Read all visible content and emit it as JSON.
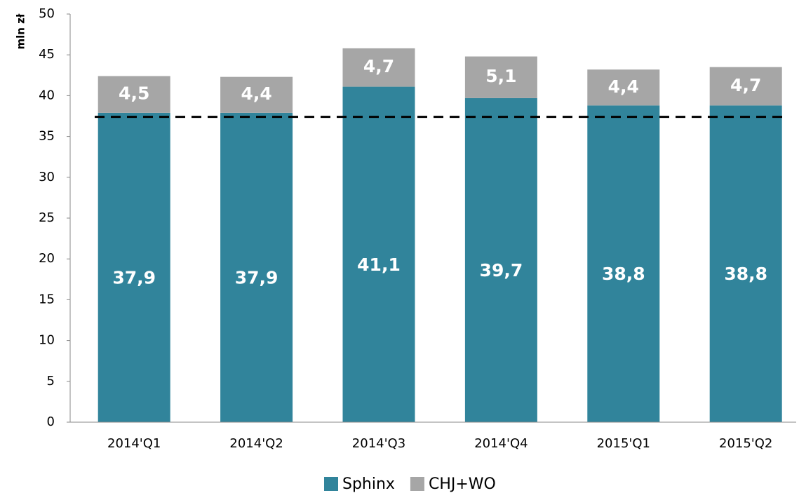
{
  "chart_data": {
    "type": "stacked_bar",
    "y_label": "mln zł",
    "categories": [
      "2014'Q1",
      "2014'Q2",
      "2014'Q3",
      "2014'Q4",
      "2015'Q1",
      "2015'Q2"
    ],
    "series": [
      {
        "name": "Sphinx",
        "color": "#31849b",
        "values": [
          37.9,
          37.9,
          41.1,
          39.7,
          38.8,
          38.8
        ],
        "value_labels": [
          "37,9",
          "37,9",
          "41,1",
          "39,7",
          "38,8",
          "38,8"
        ]
      },
      {
        "name": "CHJ+WO",
        "color": "#a6a6a6",
        "values": [
          4.5,
          4.4,
          4.7,
          5.1,
          4.4,
          4.7
        ],
        "value_labels": [
          "4,5",
          "4,4",
          "4,7",
          "5,1",
          "4,4",
          "4,7"
        ]
      }
    ],
    "reference_line": 37.4,
    "ylim": [
      0,
      50
    ],
    "yticks": [
      0,
      5,
      10,
      15,
      20,
      25,
      30,
      35,
      40,
      45,
      50
    ],
    "legend": "bottom"
  }
}
